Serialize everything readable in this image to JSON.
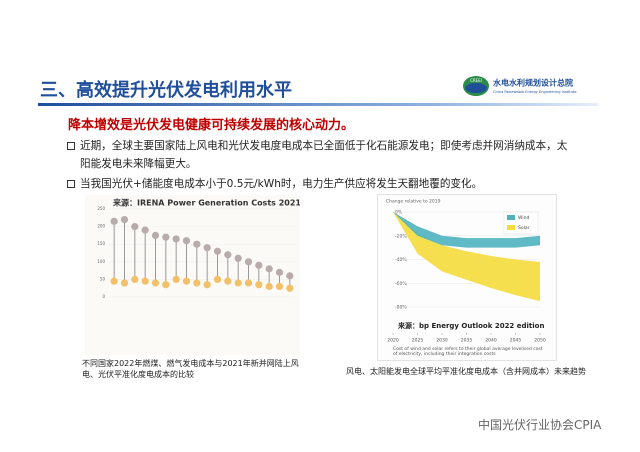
{
  "header": {
    "title": "三、高效提升光伏发电利用水平",
    "logo_text": "CREEI",
    "org_name": "水电水利规划设计总院",
    "org_name_en": "China Renewable Energy Engineering Institute"
  },
  "subtitle": "降本增效是光伏发电健康可持续发展的核心动力。",
  "bullets": [
    "近期，全球主要国家陆上风电和光伏发电度电成本已全面低于化石能源发电；即使考虑并网消纳成本，太阳能发电未来降幅更大。",
    "当我国光伏+储能度电成本小于0.5元/kWh时，电力生产供应将发生天翻地覆的变化。"
  ],
  "figures": [
    {
      "caption": "不同国家2022年燃煤、燃气发电成本与2021年新并网陆上风电、光伏平准化度电成本的比较"
    },
    {
      "caption": "风电、太阳能发电全球平均平准化度电成本（含并网成本）未来趋势"
    }
  ],
  "chart_data": [
    {
      "type": "lollipop",
      "title": "来源：IRENA Power Generation Costs 2021",
      "categories": [
        null,
        null,
        null,
        null,
        null,
        null,
        null,
        null,
        null,
        null,
        null,
        null,
        null,
        null,
        null,
        null,
        null,
        null
      ],
      "series": [
        {
          "color": "#b7abab",
          "values": [
            215,
            220,
            200,
            190,
            175,
            170,
            165,
            160,
            150,
            140,
            130,
            120,
            110,
            100,
            90,
            80,
            70,
            60
          ]
        },
        {
          "color": "#f3c06a",
          "values": [
            45,
            40,
            50,
            45,
            40,
            35,
            50,
            45,
            40,
            35,
            50,
            45,
            40,
            40,
            35,
            30,
            30,
            25
          ]
        }
      ],
      "ylim": [
        0,
        250
      ],
      "yticks": [
        0,
        50,
        100,
        150,
        200,
        250
      ]
    },
    {
      "type": "range-area",
      "title": "Change relative to 2019",
      "source": "来源：bp Energy Outlook 2022 edition",
      "note": "Cost of wind and solar refers to their global average levelised cost of electricity, including their integration costs",
      "x": [
        2020,
        2025,
        2030,
        2035,
        2040,
        2045,
        2050
      ],
      "series": [
        {
          "name": "Wind",
          "color": "#4fb3bf",
          "upper": [
            0,
            -12,
            -20,
            -22,
            -22,
            -22,
            -20
          ],
          "lower": [
            0,
            -20,
            -28,
            -30,
            -30,
            -30,
            -28
          ]
        },
        {
          "name": "Solar",
          "color": "#f5dc3c",
          "upper": [
            0,
            -18,
            -28,
            -33,
            -37,
            -40,
            -42
          ],
          "lower": [
            0,
            -35,
            -50,
            -57,
            -64,
            -70,
            -75
          ]
        }
      ],
      "xlim": [
        2020,
        2050
      ],
      "ylim": [
        -80,
        0
      ],
      "xticks": [
        2020,
        2025,
        2030,
        2035,
        2040,
        2045,
        2050
      ],
      "yticks": [
        {
          "value": 0,
          "label": "0%"
        },
        {
          "value": -20,
          "label": "-20%"
        },
        {
          "value": -40,
          "label": "-40%"
        },
        {
          "value": -60,
          "label": "-60%"
        },
        {
          "value": -80,
          "label": "-80%"
        }
      ],
      "legend": "upper-right"
    }
  ],
  "watermark": "中国光伏行业协会CPIA"
}
